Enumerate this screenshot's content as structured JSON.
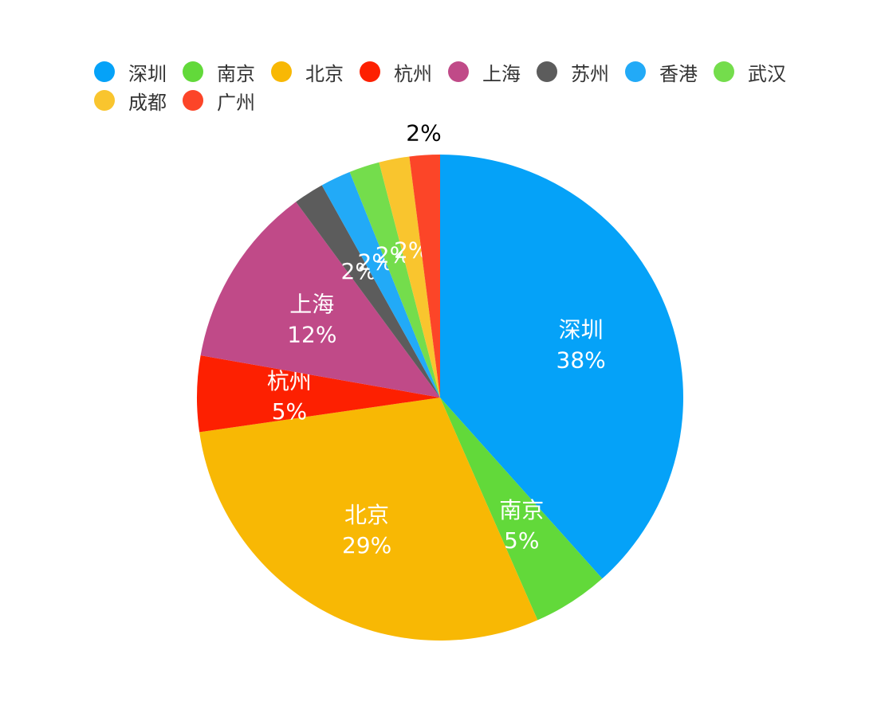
{
  "chart_data": {
    "type": "pie",
    "start_angle": "top",
    "direction": "clockwise",
    "legend_placement": "top-left",
    "slices": [
      {
        "name": "深圳",
        "value": 38,
        "label_text": "38%",
        "color": "#05A2F8"
      },
      {
        "name": "南京",
        "value": 5,
        "label_text": "5%",
        "color": "#62D93A"
      },
      {
        "name": "北京",
        "value": 29,
        "label_text": "29%",
        "color": "#F8B804"
      },
      {
        "name": "杭州",
        "value": 5,
        "label_text": "5%",
        "color": "#FD2001"
      },
      {
        "name": "上海",
        "value": 12,
        "label_text": "12%",
        "color": "#C04A88"
      },
      {
        "name": "苏州",
        "value": 2,
        "label_text": "2%",
        "color": "#5C5C5C"
      },
      {
        "name": "香港",
        "value": 2,
        "label_text": "2%",
        "color": "#22AAF7"
      },
      {
        "name": "武汉",
        "value": 2,
        "label_text": "2%",
        "color": "#74DD4C"
      },
      {
        "name": "成都",
        "value": 2,
        "label_text": "2%",
        "color": "#F9C52E"
      },
      {
        "name": "广州",
        "value": 2,
        "label_text": "2%",
        "color": "#FC4528"
      }
    ]
  }
}
